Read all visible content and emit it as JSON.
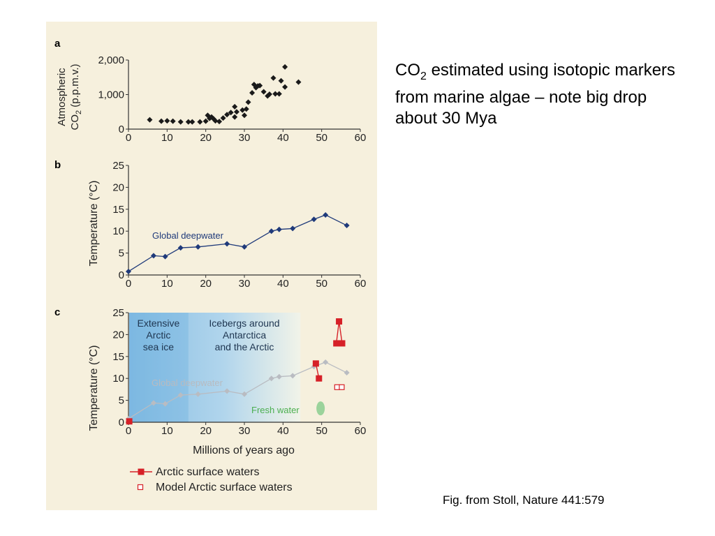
{
  "caption": {
    "prefix": "CO",
    "subscript": "2",
    "text": " estimated using isotopic markers from marine algae – note big drop about 30 Mya"
  },
  "credit": "Fig. from Stoll, Nature 441:579",
  "colors": {
    "panel_bg": "#f6f0dd",
    "co2_marker": "#1a1a1a",
    "deepwater": "#1f3a7a",
    "deepwater_faded": "#b9bcc2",
    "arctic": "#d62027",
    "fresh_water": "#9bd39b",
    "ice_blue": "#9fcbea"
  },
  "chart_data": [
    {
      "panel": "a",
      "type": "scatter",
      "ylabel_line1": "Atmospheric",
      "ylabel_line2_prefix": "CO",
      "ylabel_line2_sub": "2",
      "ylabel_line2_suffix": " (p.p.m.v.)",
      "xlim": [
        0,
        60
      ],
      "ylim": [
        0,
        2000
      ],
      "xticks": [
        "0",
        "10",
        "20",
        "30",
        "40",
        "50",
        "60"
      ],
      "yticks": [
        "0",
        "1,000",
        "2,000"
      ],
      "points": [
        [
          5.5,
          270
        ],
        [
          8.5,
          230
        ],
        [
          10,
          240
        ],
        [
          11.5,
          230
        ],
        [
          13.5,
          210
        ],
        [
          15.5,
          210
        ],
        [
          16.5,
          210
        ],
        [
          18.5,
          210
        ],
        [
          20,
          230
        ],
        [
          20.5,
          400
        ],
        [
          21,
          310
        ],
        [
          21.5,
          350
        ],
        [
          22,
          300
        ],
        [
          22.5,
          240
        ],
        [
          23.5,
          220
        ],
        [
          24.5,
          320
        ],
        [
          25.5,
          420
        ],
        [
          26.5,
          480
        ],
        [
          27.5,
          350
        ],
        [
          27.5,
          650
        ],
        [
          28,
          500
        ],
        [
          29.5,
          550
        ],
        [
          30,
          400
        ],
        [
          30.5,
          580
        ],
        [
          31,
          780
        ],
        [
          32,
          1050
        ],
        [
          32.5,
          1290
        ],
        [
          33,
          1200
        ],
        [
          33.5,
          1250
        ],
        [
          34,
          1260
        ],
        [
          35,
          1080
        ],
        [
          36,
          960
        ],
        [
          36.5,
          1010
        ],
        [
          37.5,
          1480
        ],
        [
          38,
          1020
        ],
        [
          39,
          1020
        ],
        [
          39.5,
          1400
        ],
        [
          40.5,
          1220
        ],
        [
          40.5,
          1800
        ],
        [
          44,
          1360
        ]
      ]
    },
    {
      "panel": "b",
      "type": "line",
      "ylabel": "Temperature (°C)",
      "xlim": [
        0,
        60
      ],
      "ylim": [
        0,
        25
      ],
      "xticks": [
        "0",
        "10",
        "20",
        "30",
        "40",
        "50",
        "60"
      ],
      "yticks": [
        "0",
        "5",
        "10",
        "15",
        "20",
        "25"
      ],
      "series": [
        {
          "name": "Global deepwater",
          "x": [
            0,
            6.5,
            9.5,
            13.5,
            18,
            25.5,
            30,
            37,
            39,
            42.5,
            48,
            51,
            56.5
          ],
          "y": [
            0.8,
            4.4,
            4.2,
            6.2,
            6.4,
            7.1,
            6.4,
            10.0,
            10.4,
            10.6,
            12.7,
            13.7,
            11.3
          ]
        }
      ]
    },
    {
      "panel": "c",
      "type": "line",
      "ylabel": "Temperature (°C)",
      "xlabel": "Millions of years ago",
      "xlim": [
        0,
        60
      ],
      "ylim": [
        0,
        25
      ],
      "xticks": [
        "0",
        "10",
        "20",
        "30",
        "40",
        "50",
        "60"
      ],
      "yticks": [
        "0",
        "5",
        "10",
        "15",
        "20",
        "25"
      ],
      "regions": [
        {
          "label_lines": [
            "Extensive",
            "Arctic",
            "sea ice"
          ],
          "x0": 0,
          "x1": 15.5
        },
        {
          "label_lines": [
            "Icebergs around",
            "Antarctica",
            "and the Arctic"
          ],
          "x0": 15.5,
          "x1": 44.5
        }
      ],
      "annotations": {
        "global_deepwater": "Global deepwater",
        "fresh_water": "Fresh water"
      },
      "fresh_water_x": 49,
      "fresh_water_y": 3,
      "series": [
        {
          "name": "Global deepwater",
          "x": [
            0,
            6.5,
            9.5,
            13.5,
            18,
            25.5,
            30,
            37,
            39,
            42.5,
            48,
            51,
            56.5
          ],
          "y": [
            0.8,
            4.4,
            4.2,
            6.2,
            6.4,
            7.1,
            6.4,
            10.0,
            10.4,
            10.6,
            12.7,
            13.7,
            11.3
          ]
        },
        {
          "name": "Arctic surface waters",
          "segments": [
            {
              "x": [
                48.5,
                49.3
              ],
              "y": [
                13.4,
                10.0
              ]
            },
            {
              "x": [
                53.8,
                54.5,
                55.3
              ],
              "y": [
                18.0,
                23.0,
                18.0
              ]
            }
          ],
          "isolated": [
            {
              "x": 0.2,
              "y": 0.2
            }
          ]
        },
        {
          "name": "Model Arctic surface waters",
          "points": [
            {
              "x": 54,
              "y": 8
            },
            {
              "x": 55.2,
              "y": 8
            }
          ]
        }
      ],
      "legend": [
        {
          "label": "Arctic surface waters",
          "style": "filled"
        },
        {
          "label": "Model Arctic surface waters",
          "style": "open"
        }
      ]
    }
  ]
}
